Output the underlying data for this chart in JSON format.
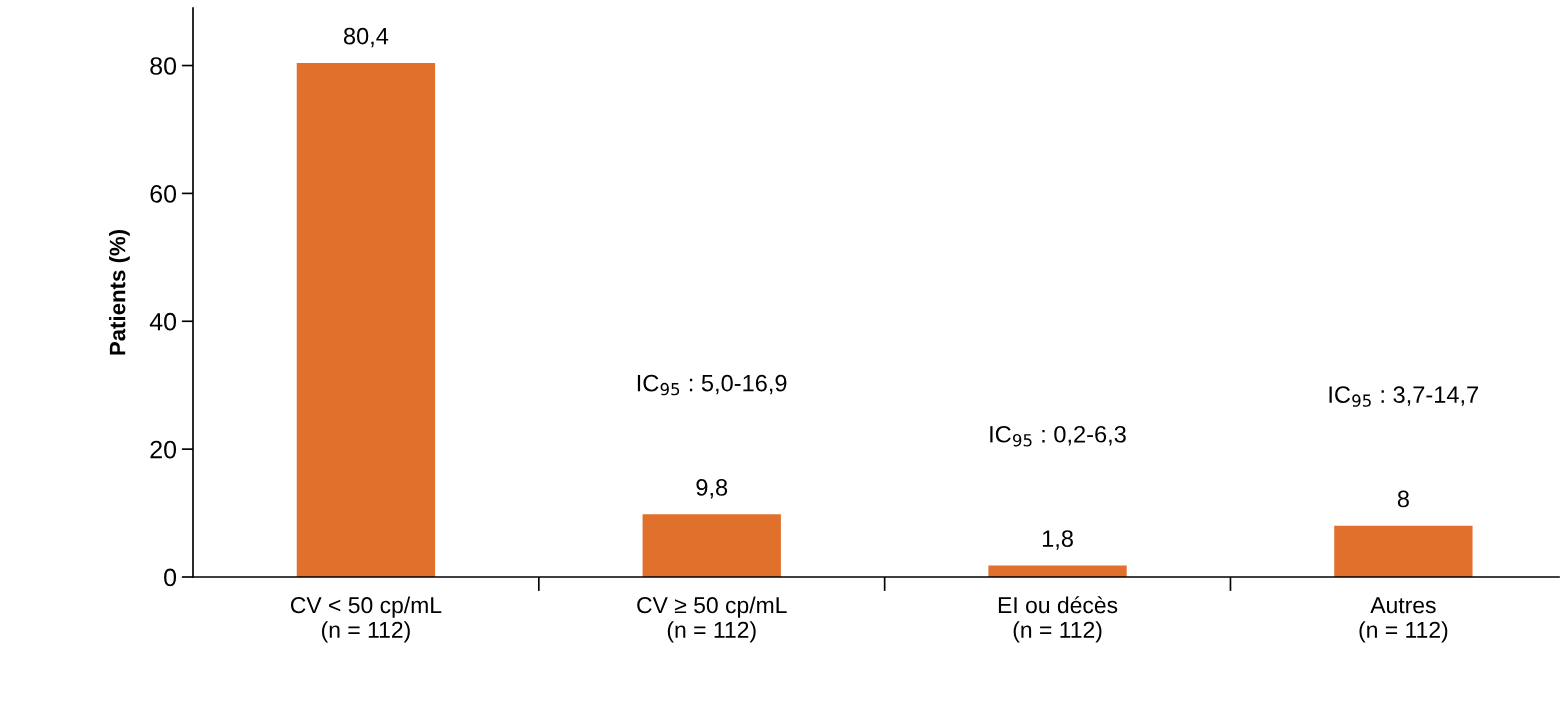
{
  "chart_data": {
    "type": "bar",
    "ylabel": "Patients (%)",
    "categories": [
      "CV < 50 cp/mL\n(n = 112)",
      "CV ≥ 50 cp/mL\n(n = 112)",
      "EI ou décès\n(n = 112)",
      "Autres\n(n = 112)"
    ],
    "values": [
      80.4,
      9.8,
      1.8,
      8
    ],
    "value_labels": [
      "80,4",
      "9,8",
      "1,8",
      "8"
    ],
    "color": "#e0702c",
    "ylim": [
      0,
      89
    ],
    "yticks": [
      0,
      20,
      40,
      60,
      80
    ],
    "grid": false,
    "legend": false,
    "annotations": [
      "IC$_{95}$ : 5,0-16,9",
      "IC$_{95}$ : 0,2-6,3",
      "IC$_{95}$ : 3,7-14,7"
    ]
  }
}
